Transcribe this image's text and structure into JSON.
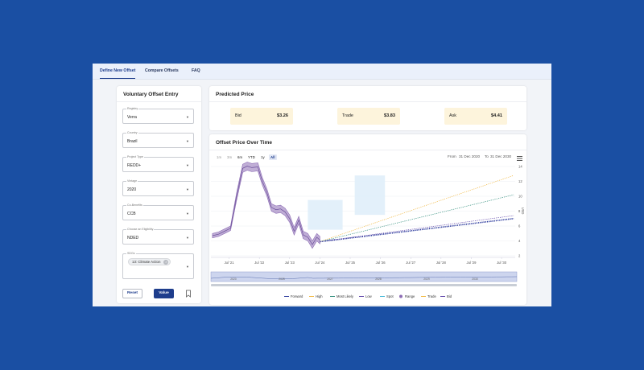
{
  "nav": {
    "tabs": [
      {
        "label": "Define New Offset",
        "active": true
      },
      {
        "label": "Compare Offsets",
        "active": false
      },
      {
        "label": "FAQ",
        "active": false
      }
    ]
  },
  "entry": {
    "title": "Voluntary Offset Entry",
    "fields": [
      {
        "label": "Registry",
        "value": "Verra"
      },
      {
        "label": "Country",
        "value": "Brazil"
      },
      {
        "label": "Project Type",
        "value": "REDD+"
      },
      {
        "label": "Vintage",
        "value": "2020"
      },
      {
        "label": "Co-Benefits",
        "value": "CCB"
      },
      {
        "label": "Choose an Eligibility",
        "value": "NDED"
      },
      {
        "label": "SDGs",
        "chip": "13: Climate Action"
      }
    ],
    "reset_label": "Reset",
    "value_label": "Value"
  },
  "predicted": {
    "title": "Predicted Price",
    "bid_label": "Bid",
    "bid_value": "$3.26",
    "trade_label": "Trade",
    "trade_value": "$3.83",
    "ask_label": "Ask",
    "ask_value": "$4.41"
  },
  "chart": {
    "title": "Offset Price Over Time",
    "ranges": [
      "1m",
      "3m",
      "6m",
      "YTD",
      "1y",
      "All"
    ],
    "enabled_ranges": [
      "6m",
      "YTD",
      "1y",
      "All"
    ],
    "selected_range": "All",
    "from_label": "From",
    "from_date": "31 Dec 2020",
    "to_label": "To",
    "to_date": "31 Dec 2030",
    "navigator_labels": [
      "2020",
      "2025",
      "2027",
      "2028",
      "2029",
      "2030"
    ]
  },
  "colors": {
    "background": "#1a4fa3",
    "accent": "#1e3d8c",
    "history": "#8c6cb4",
    "forecast": "#27359a",
    "high": "#f0b63c",
    "most_likely": "#2a8a78",
    "low": "#5a3fa6",
    "spot": "#3db5d6",
    "band": "#e0eef9"
  },
  "chart_data": {
    "type": "line",
    "ylabel": "USD",
    "xlabel": "",
    "ylim": [
      2,
      14
    ],
    "yticks": [
      2,
      4,
      6,
      8,
      10,
      12,
      14
    ],
    "xticks": [
      "Jul '21",
      "Jul '22",
      "Jul '23",
      "Jul '24",
      "Jul '25",
      "Jul '26",
      "Jul '27",
      "Jul '28",
      "Jul '29",
      "Jul '30"
    ],
    "legend_position": "bottom",
    "legend": [
      "Forward",
      "High",
      "Most Likely",
      "Low",
      "Spot",
      "Range",
      "Trade",
      "Bid"
    ],
    "series": [
      {
        "name": "Range",
        "x": [
          2020.95,
          2021.15,
          2021.35,
          2021.55,
          2021.75,
          2021.95,
          2022.1,
          2022.25,
          2022.45,
          2022.6,
          2022.75,
          2022.9,
          2023.05,
          2023.2,
          2023.35,
          2023.5,
          2023.65,
          2023.8,
          2023.95,
          2024.1,
          2024.25,
          2024.4,
          2024.5
        ],
        "upper": [
          5.0,
          5.2,
          5.6,
          6.0,
          10.5,
          14.3,
          14.6,
          14.4,
          14.5,
          12.5,
          11.0,
          9.0,
          8.7,
          8.8,
          8.4,
          7.5,
          5.8,
          7.3,
          5.3,
          5.0,
          4.0,
          5.0,
          4.6
        ],
        "lower": [
          4.4,
          4.6,
          5.0,
          5.4,
          9.5,
          13.2,
          13.5,
          13.3,
          13.4,
          11.5,
          10.0,
          8.0,
          7.7,
          7.8,
          7.4,
          6.5,
          4.8,
          6.3,
          4.3,
          4.0,
          3.0,
          4.0,
          3.6
        ]
      },
      {
        "name": "Forward",
        "x": [
          2024.5,
          2030.9
        ],
        "values": [
          3.9,
          7.0
        ]
      },
      {
        "name": "High",
        "x": [
          2024.5,
          2030.9
        ],
        "values": [
          3.9,
          12.8
        ]
      },
      {
        "name": "Most Likely",
        "x": [
          2024.5,
          2030.9
        ],
        "values": [
          3.9,
          10.2
        ]
      },
      {
        "name": "Low",
        "x": [
          2024.5,
          2030.9
        ],
        "values": [
          3.9,
          7.4
        ]
      }
    ],
    "bands": [
      {
        "x_start": 2024.1,
        "x_end": 2025.25,
        "low": 5.5,
        "high": 9.5
      },
      {
        "x_start": 2025.65,
        "x_end": 2026.65,
        "low": 7.5,
        "high": 12.8
      }
    ]
  }
}
